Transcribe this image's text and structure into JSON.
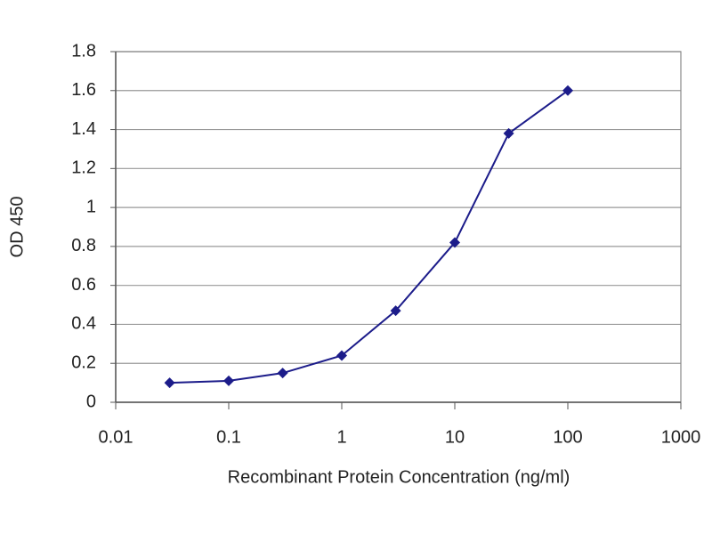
{
  "chart_data": {
    "type": "line",
    "x_label": "Recombinant Protein Concentration (ng/ml)",
    "y_label": "OD 450",
    "x": [
      0.03,
      0.1,
      0.3,
      1,
      3,
      10,
      30,
      100
    ],
    "series": [
      {
        "color": "#1c1c8a",
        "values": [
          0.1,
          0.11,
          0.15,
          0.24,
          0.47,
          0.82,
          1.38,
          1.6
        ]
      }
    ],
    "xscale": "log",
    "xlim": [
      0.01,
      1000
    ],
    "xticks": [
      0.01,
      0.1,
      1,
      10,
      100,
      1000
    ],
    "ylim": [
      0,
      1.8
    ],
    "yticks": [
      0,
      0.2,
      0.4,
      0.6,
      0.8,
      1,
      1.2,
      1.4,
      1.6,
      1.8
    ],
    "grid": true
  }
}
